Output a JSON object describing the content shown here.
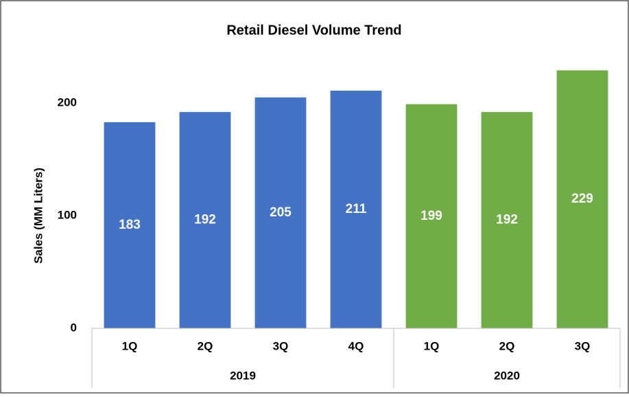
{
  "chart_data": {
    "type": "bar",
    "title": "Retail Diesel Volume Trend",
    "y_label": "Sales (MM Liters)",
    "groups": [
      {
        "name": "2019",
        "color": "#4472c4",
        "categories": [
          "1Q",
          "2Q",
          "3Q",
          "4Q"
        ],
        "values": [
          183,
          192,
          205,
          211
        ]
      },
      {
        "name": "2020",
        "color": "#70ad47",
        "categories": [
          "1Q",
          "2Q",
          "3Q"
        ],
        "values": [
          199,
          192,
          229
        ]
      }
    ],
    "ylim": [
      0,
      250
    ],
    "yticks": [
      0,
      100,
      200
    ],
    "grid": false
  }
}
